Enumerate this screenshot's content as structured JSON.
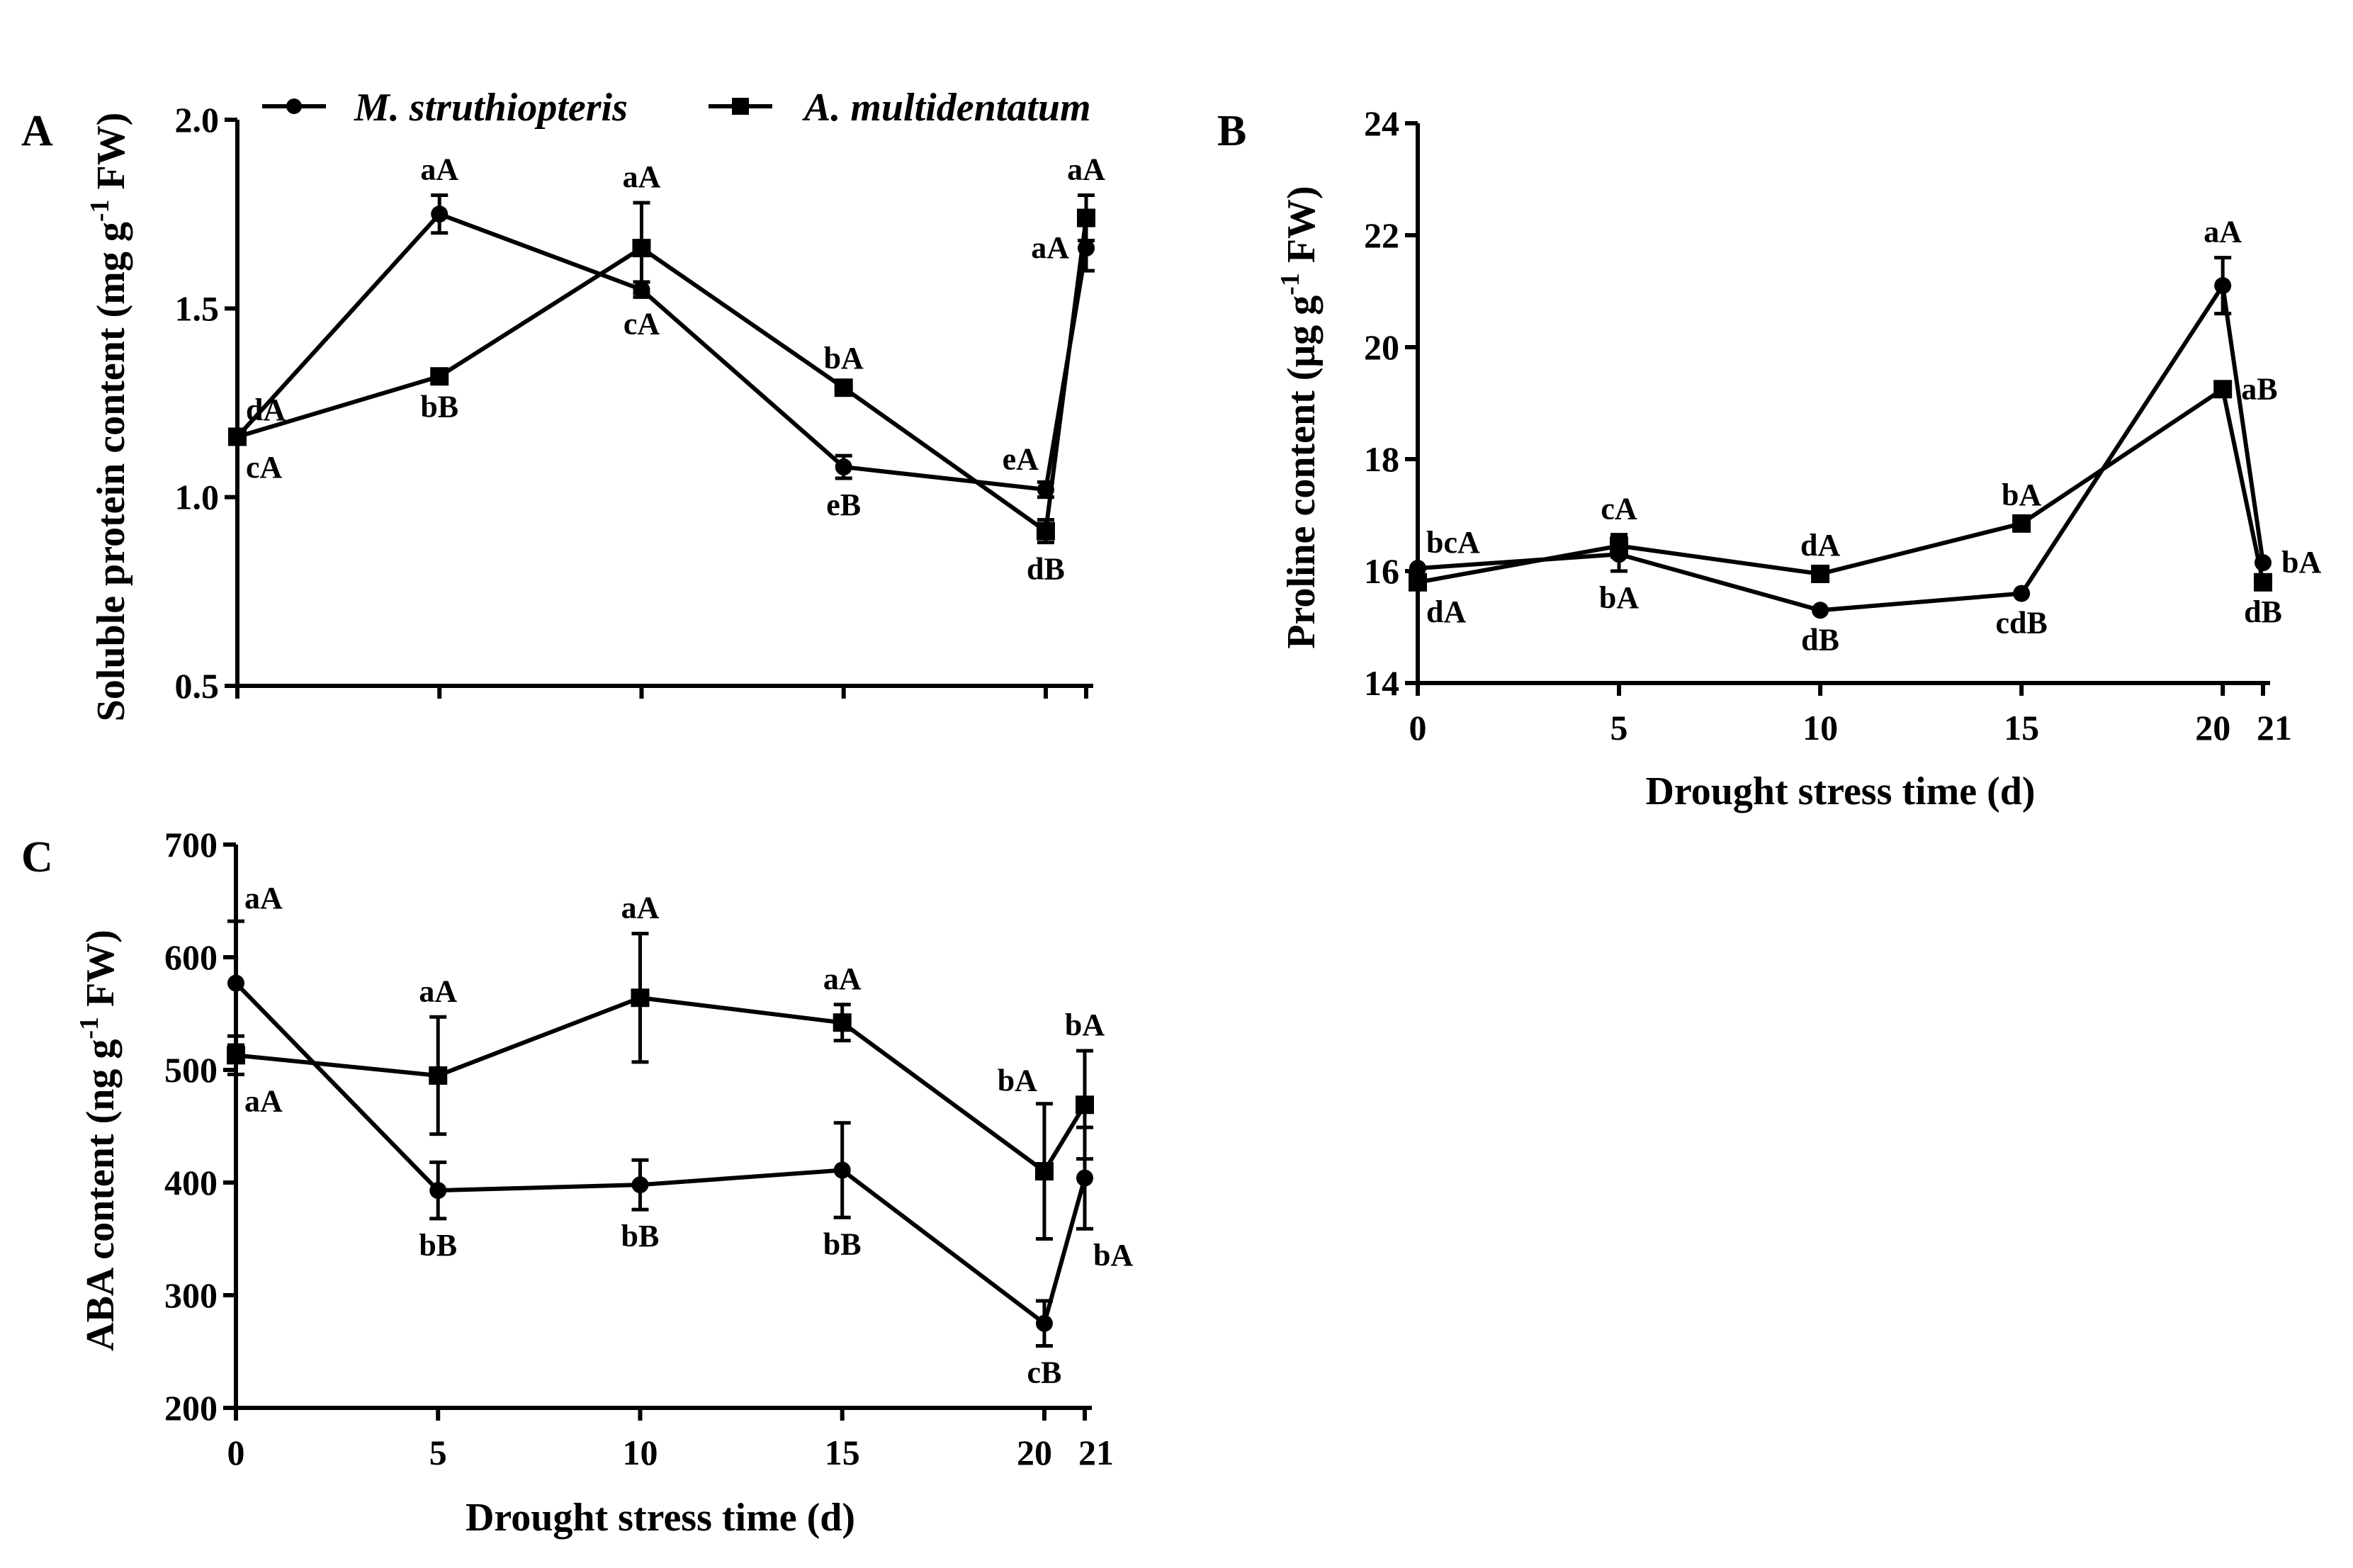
{
  "legend": {
    "series": [
      "M. struthiopteris",
      "A. multidentatum"
    ],
    "markers": [
      "circle",
      "square"
    ]
  },
  "chart_data": [
    {
      "panel": "A",
      "type": "line",
      "x": [
        0,
        5,
        10,
        15,
        20,
        21
      ],
      "xticks": [],
      "ylabel": {
        "main": "Soluble protein content (mg g",
        "sup": "-1",
        "tail": " FW)"
      },
      "xlabel": "",
      "ylim": [
        0.5,
        2.0
      ],
      "yticks": [
        "0.5",
        "1.0",
        "1.5",
        "2.0"
      ],
      "series": [
        {
          "name": "M. struthiopteris",
          "marker": "circle",
          "values": [
            1.16,
            1.75,
            1.55,
            1.08,
            1.02,
            1.66
          ],
          "errors": [
            0.01,
            0.05,
            0.02,
            0.03,
            0.02,
            0.06
          ],
          "labels": [
            "dA",
            "aA",
            "cA",
            "eB",
            "eA",
            "aA"
          ],
          "label_pos": [
            "above-right",
            "above",
            "below",
            "below",
            "above-left",
            "left"
          ]
        },
        {
          "name": "A. multidentatum",
          "marker": "square",
          "values": [
            1.16,
            1.32,
            1.66,
            1.29,
            0.91,
            1.74
          ],
          "errors": [
            0.01,
            0.01,
            0.12,
            0.01,
            0.03,
            0.06
          ],
          "labels": [
            "cA",
            "bB",
            "aA",
            "bA",
            "dB",
            "aA"
          ],
          "label_pos": [
            "below-right",
            "below",
            "above",
            "above",
            "below",
            "above"
          ]
        }
      ]
    },
    {
      "panel": "B",
      "type": "line",
      "x": [
        0,
        5,
        10,
        15,
        20,
        21
      ],
      "xticks": [
        "0",
        "5",
        "10",
        "15",
        "20",
        "21"
      ],
      "ylabel": {
        "main": "Proline content (μg g",
        "sup": "-1",
        "tail": " FW)"
      },
      "xlabel": "Drought stress time (d)",
      "ylim": [
        14,
        24
      ],
      "yticks": [
        "14",
        "16",
        "18",
        "20",
        "22",
        "24"
      ],
      "series": [
        {
          "name": "M. struthiopteris",
          "marker": "circle",
          "values": [
            16.05,
            16.3,
            15.3,
            15.6,
            21.1,
            16.15
          ],
          "errors": [
            0.05,
            0.3,
            0.05,
            0.05,
            0.5,
            0.05
          ],
          "labels": [
            "bcA",
            "bA",
            "dB",
            "cdB",
            "aA",
            "bA"
          ],
          "label_pos": [
            "above-right",
            "below",
            "below",
            "below",
            "above",
            "right"
          ]
        },
        {
          "name": "A. multidentatum",
          "marker": "square",
          "values": [
            15.8,
            16.45,
            15.95,
            16.85,
            19.25,
            15.8
          ],
          "errors": [
            0.05,
            0.2,
            0.05,
            0.05,
            0.1,
            0.05
          ],
          "labels": [
            "dA",
            "cA",
            "dA",
            "bA",
            "aB",
            "dB"
          ],
          "label_pos": [
            "below-right",
            "above",
            "above",
            "above",
            "right",
            "below"
          ]
        }
      ]
    },
    {
      "panel": "C",
      "type": "line",
      "x": [
        0,
        5,
        10,
        15,
        20,
        21
      ],
      "xticks": [
        "0",
        "5",
        "10",
        "15",
        "20",
        "21"
      ],
      "ylabel": {
        "main": "ABA content (ng g",
        "sup": "-1",
        "tail": " FW)"
      },
      "xlabel": "Drought stress time (d)",
      "ylim": [
        200,
        700
      ],
      "yticks": [
        "200",
        "300",
        "400",
        "500",
        "600",
        "700"
      ],
      "series": [
        {
          "name": "M. struthiopteris",
          "marker": "circle",
          "values": [
            577,
            393,
            398,
            411,
            275,
            404
          ],
          "errors": [
            55,
            25,
            22,
            42,
            20,
            45
          ],
          "labels": [
            "aA",
            "bB",
            "bB",
            "bB",
            "cB",
            "bA"
          ],
          "label_pos": [
            "above-right",
            "below",
            "below",
            "below",
            "below",
            "below-right"
          ]
        },
        {
          "name": "A. multidentatum",
          "marker": "square",
          "values": [
            513,
            495,
            564,
            542,
            410,
            469
          ],
          "errors": [
            17,
            52,
            57,
            16,
            60,
            48
          ],
          "labels": [
            "aA",
            "aA",
            "aA",
            "aA",
            "bA",
            "bA"
          ],
          "label_pos": [
            "below-right",
            "above",
            "above",
            "above",
            "above-left",
            "above"
          ]
        }
      ]
    }
  ]
}
